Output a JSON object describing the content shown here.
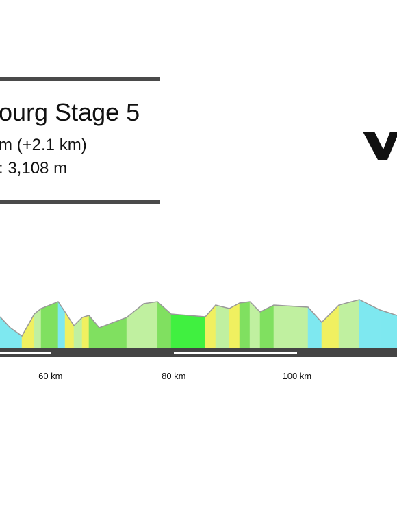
{
  "chart_data": {
    "type": "area",
    "title": "ourg Stage 5",
    "subtitle": "m (+2.1 km)",
    "subtitle2": ": 3,108 m",
    "x": [
      51.8,
      53.47,
      55.36,
      57.36,
      58.47,
      61.24,
      62.36,
      63.8,
      65.13,
      66.24,
      67.91,
      72.36,
      75.13,
      77.36,
      79.58,
      85.13,
      86.8,
      89.02,
      90.69,
      92.36,
      94.02,
      96.24,
      101.8,
      104.02,
      106.8,
      110.13,
      113.47,
      116.24
    ],
    "values": [
      45,
      29,
      17,
      49,
      57,
      67,
      52,
      32,
      44,
      47,
      29,
      44,
      64,
      67,
      49,
      45,
      62,
      57,
      65,
      67,
      52,
      62,
      59,
      37,
      62,
      70,
      55,
      47
    ],
    "colors": [
      "#7ee8f0",
      "#7ee8f0",
      "#f0f060",
      "#c0f0a0",
      "#80e060",
      "#7ee8f0",
      "#f0f060",
      "#c0f0a0",
      "#f0f060",
      "#80e060",
      "#80e060",
      "#c0f0a0",
      "#c0f0a0",
      "#80e060",
      "#40f040",
      "#f0f060",
      "#c0f0a0",
      "#f0f060",
      "#80e060",
      "#c0f0a0",
      "#80e060",
      "#c0f0a0",
      "#7ee8f0",
      "#f0f060",
      "#c0f0a0",
      "#7ee8f0",
      "#7ee8f0"
    ],
    "xlim": [
      51.8,
      116.24
    ],
    "xticks": [
      {
        "value": 60,
        "label": "60 km"
      },
      {
        "value": 80,
        "label": "80 km"
      },
      {
        "value": 100,
        "label": "100 km"
      }
    ]
  }
}
